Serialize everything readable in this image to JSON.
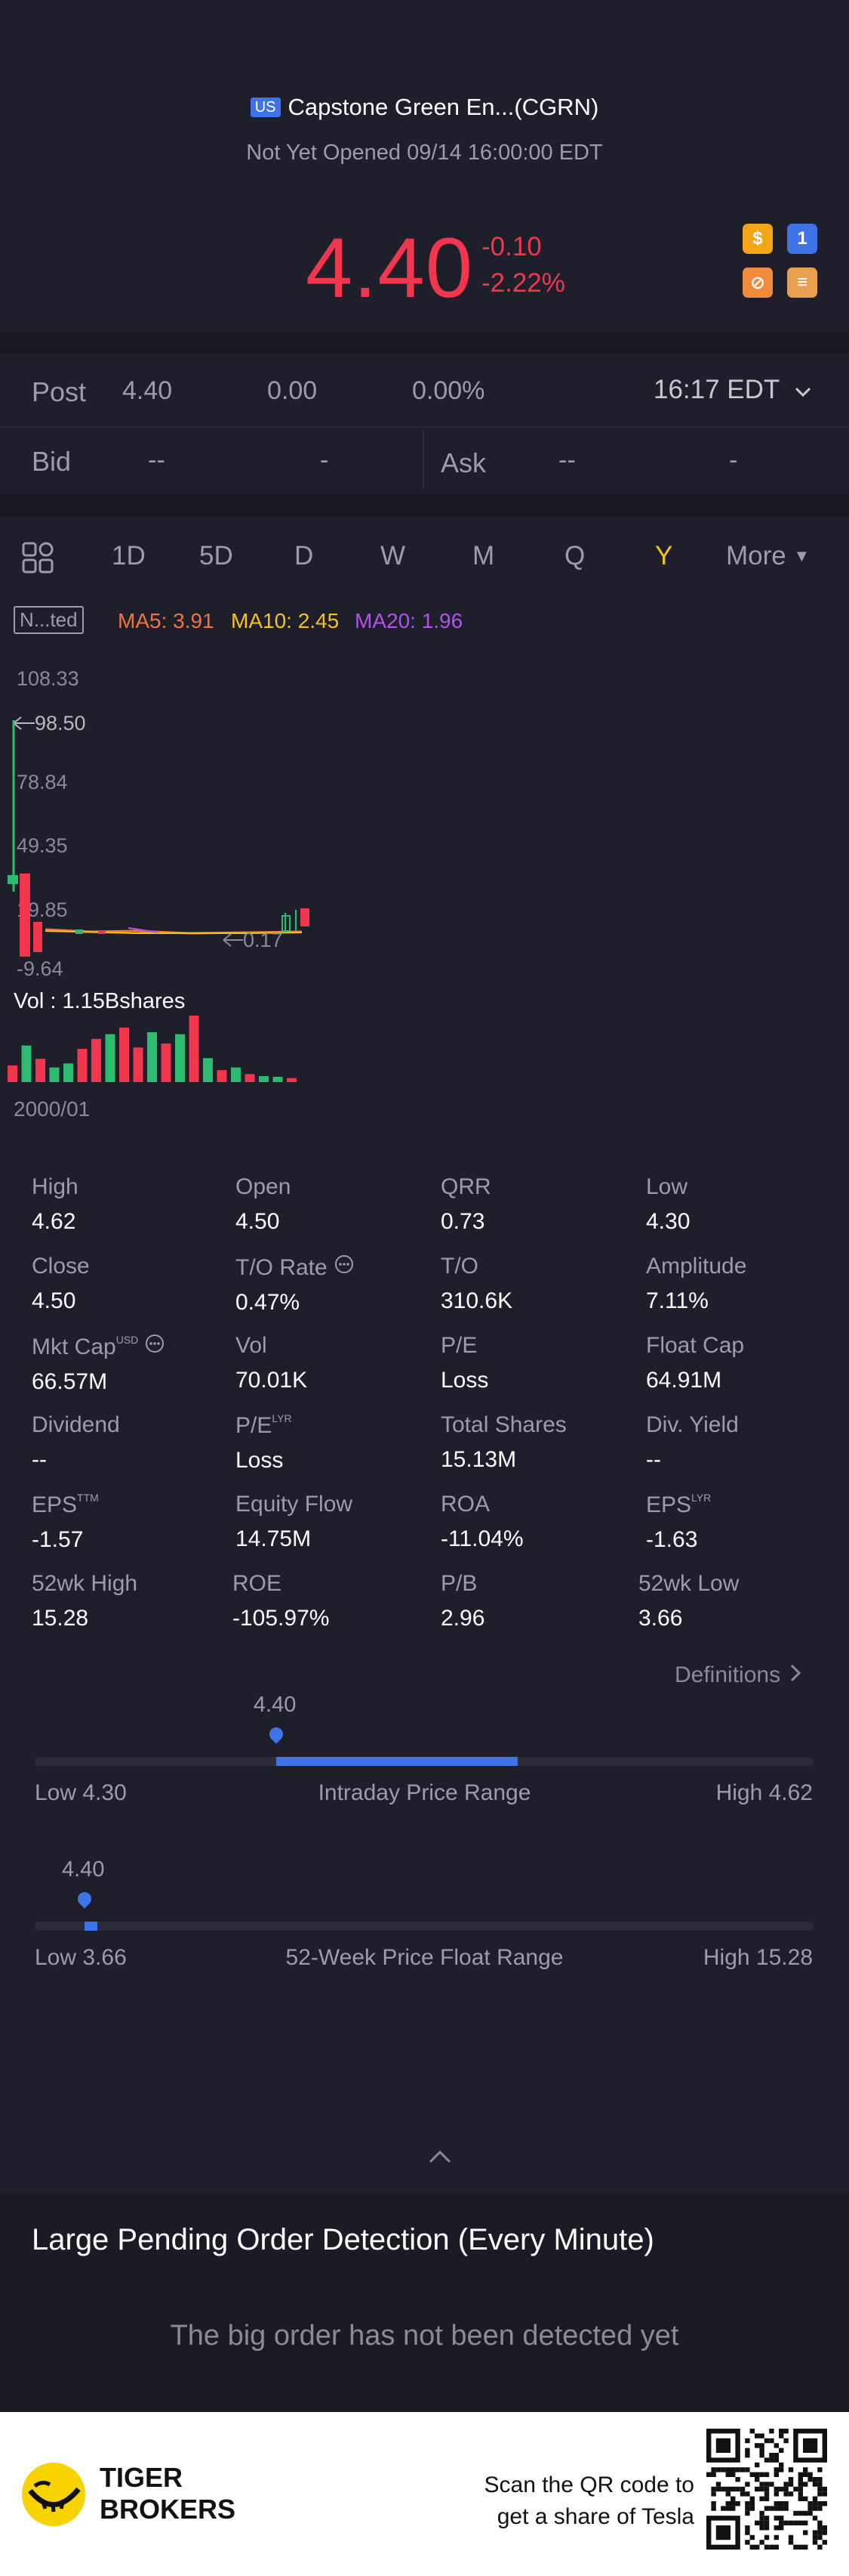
{
  "header": {
    "market_badge": "US",
    "title": "Capstone Green En...(CGRN)",
    "status": "Not Yet Opened 09/14 16:00:00 EDT"
  },
  "quote": {
    "price": "4.40",
    "change": "-0.10",
    "change_pct": "-2.22%",
    "color_down": "#f2364d"
  },
  "quote_icons": [
    {
      "name": "dollar-icon",
      "glyph": "$",
      "color": "#f2a516"
    },
    {
      "name": "level1-icon",
      "glyph": "1",
      "color": "#3e74e8"
    },
    {
      "name": "no-trade-icon",
      "glyph": "⊘",
      "color": "#f08a3c"
    },
    {
      "name": "stack-icon",
      "glyph": "≡",
      "color": "#e8a050"
    }
  ],
  "post": {
    "label": "Post",
    "price": "4.40",
    "change": "0.00",
    "change_pct": "0.00%",
    "time": "16:17 EDT"
  },
  "bid": {
    "label": "Bid",
    "price": "--",
    "size": "-"
  },
  "ask": {
    "label": "Ask",
    "price": "--",
    "size": "-"
  },
  "timeframes": [
    "1D",
    "5D",
    "D",
    "W",
    "M",
    "Q",
    "Y"
  ],
  "timeframe_selected": "Y",
  "more_label": "More",
  "ma": {
    "mode": "N...ted",
    "ma5": "MA5: 3.91",
    "ma10": "MA10: 2.45",
    "ma20": "MA20: 1.96",
    "colors": {
      "ma5": "#f0753b",
      "ma10": "#f4c21d",
      "ma20": "#b252e8"
    }
  },
  "chart_data": {
    "type": "candlestick",
    "y_ticks": [
      "108.33",
      "78.84",
      "49.35",
      "19.85",
      "-9.64"
    ],
    "annotations": {
      "high": "98.50",
      "low": "0.17"
    },
    "volume_label": "Vol  : 1.15Bshares",
    "x_start": "2000/01",
    "volume": [
      {
        "v": 0.25,
        "up": false
      },
      {
        "v": 0.55,
        "up": true
      },
      {
        "v": 0.35,
        "up": false
      },
      {
        "v": 0.22,
        "up": true
      },
      {
        "v": 0.28,
        "up": true
      },
      {
        "v": 0.5,
        "up": false
      },
      {
        "v": 0.65,
        "up": false
      },
      {
        "v": 0.72,
        "up": true
      },
      {
        "v": 0.82,
        "up": false
      },
      {
        "v": 0.52,
        "up": false
      },
      {
        "v": 0.75,
        "up": true
      },
      {
        "v": 0.58,
        "up": false
      },
      {
        "v": 0.72,
        "up": true
      },
      {
        "v": 1.0,
        "up": false
      },
      {
        "v": 0.36,
        "up": true
      },
      {
        "v": 0.18,
        "up": false
      },
      {
        "v": 0.22,
        "up": true
      },
      {
        "v": 0.12,
        "up": false
      },
      {
        "v": 0.09,
        "up": true
      },
      {
        "v": 0.08,
        "up": true
      },
      {
        "v": 0.06,
        "up": false
      }
    ]
  },
  "stats": [
    {
      "label": "High",
      "value": "4.62",
      "sup": "",
      "info": false
    },
    {
      "label": "Open",
      "value": "4.50",
      "sup": "",
      "info": false
    },
    {
      "label": "QRR",
      "value": "0.73",
      "sup": "",
      "info": false
    },
    {
      "label": "Low",
      "value": "4.30",
      "sup": "",
      "info": false
    },
    {
      "label": "Close",
      "value": "4.50",
      "sup": "",
      "info": false
    },
    {
      "label": "T/O Rate",
      "value": "0.47%",
      "sup": "",
      "info": true
    },
    {
      "label": "T/O",
      "value": "310.6K",
      "sup": "",
      "info": false
    },
    {
      "label": "Amplitude",
      "value": "7.11%",
      "sup": "",
      "info": false
    },
    {
      "label": "Mkt Cap",
      "value": "66.57M",
      "sup": "USD",
      "info": true
    },
    {
      "label": "Vol",
      "value": "70.01K",
      "sup": "",
      "info": false
    },
    {
      "label": "P/E",
      "value": "Loss",
      "sup": "",
      "info": false
    },
    {
      "label": "Float Cap",
      "value": "64.91M",
      "sup": "",
      "info": false
    },
    {
      "label": "Dividend",
      "value": "--",
      "sup": "",
      "info": false
    },
    {
      "label": "P/E",
      "value": "Loss",
      "sup": "LYR",
      "info": false
    },
    {
      "label": "Total Shares",
      "value": "15.13M",
      "sup": "",
      "info": false
    },
    {
      "label": "Div. Yield",
      "value": "--",
      "sup": "",
      "info": false
    },
    {
      "label": "EPS",
      "value": "-1.57",
      "sup": "TTM",
      "info": false
    },
    {
      "label": "Equity Flow",
      "value": "14.75M",
      "sup": "",
      "info": false
    },
    {
      "label": "ROA",
      "value": "-11.04%",
      "sup": "",
      "info": false
    },
    {
      "label": "EPS",
      "value": "-1.63",
      "sup": "LYR",
      "info": false
    },
    {
      "label": "52wk High",
      "value": "15.28",
      "sup": "",
      "info": false
    },
    {
      "label": "ROE",
      "value": "-105.97%",
      "sup": "",
      "info": false
    },
    {
      "label": "P/B",
      "value": "2.96",
      "sup": "",
      "info": false
    },
    {
      "label": "52wk Low",
      "value": "3.66",
      "sup": "",
      "info": false
    }
  ],
  "definitions_label": "Definitions",
  "intraday_range": {
    "current": "4.40",
    "low_label": "Low 4.30",
    "title": "Intraday Price Range",
    "high_label": "High 4.62",
    "marker_fraction": 0.31,
    "fill_end_fraction": 0.62
  },
  "week52_range": {
    "current": "4.40",
    "low_label": "Low 3.66",
    "title": "52-Week Price Float Range",
    "high_label": "High 15.28",
    "marker_fraction": 0.064,
    "fill_end_fraction": 0.08
  },
  "large_order": {
    "title": "Large Pending Order Detection (Every Minute)",
    "empty_message": "The big order has not been detected yet"
  },
  "footer": {
    "brand_line1": "TIGER",
    "brand_line2": "BROKERS",
    "qr_line1": "Scan the QR code to",
    "qr_line2": "get a share of Tesla"
  }
}
